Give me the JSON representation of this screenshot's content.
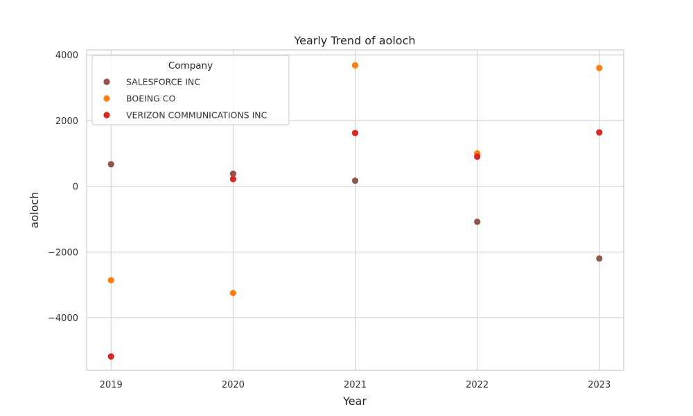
{
  "chart_data": {
    "type": "scatter",
    "title": "Yearly Trend of aoloch",
    "xlabel": "Year",
    "ylabel": "aoloch",
    "x": [
      "2019",
      "2020",
      "2021",
      "2022",
      "2023"
    ],
    "xlim": [
      2018.8,
      2023.2
    ],
    "ylim": [
      -5600,
      4150
    ],
    "yticks": [
      -4000,
      -2000,
      0,
      2000,
      4000
    ],
    "ytick_labels": [
      "−4000",
      "−2000",
      "0",
      "2000",
      "4000"
    ],
    "grid": true,
    "legend": {
      "title": "Company",
      "placement": "top-left"
    },
    "series": [
      {
        "name": "SALESFORCE INC",
        "color": "#8c564b",
        "values": [
          670,
          380,
          170,
          -1080,
          -2200
        ]
      },
      {
        "name": "BOEING CO",
        "color": "#ff7f0e",
        "values": [
          -2860,
          -3250,
          3680,
          1000,
          3600
        ]
      },
      {
        "name": "VERIZON COMMUNICATIONS INC",
        "color": "#d62728",
        "values": [
          -5180,
          220,
          1620,
          900,
          1640
        ]
      }
    ]
  }
}
